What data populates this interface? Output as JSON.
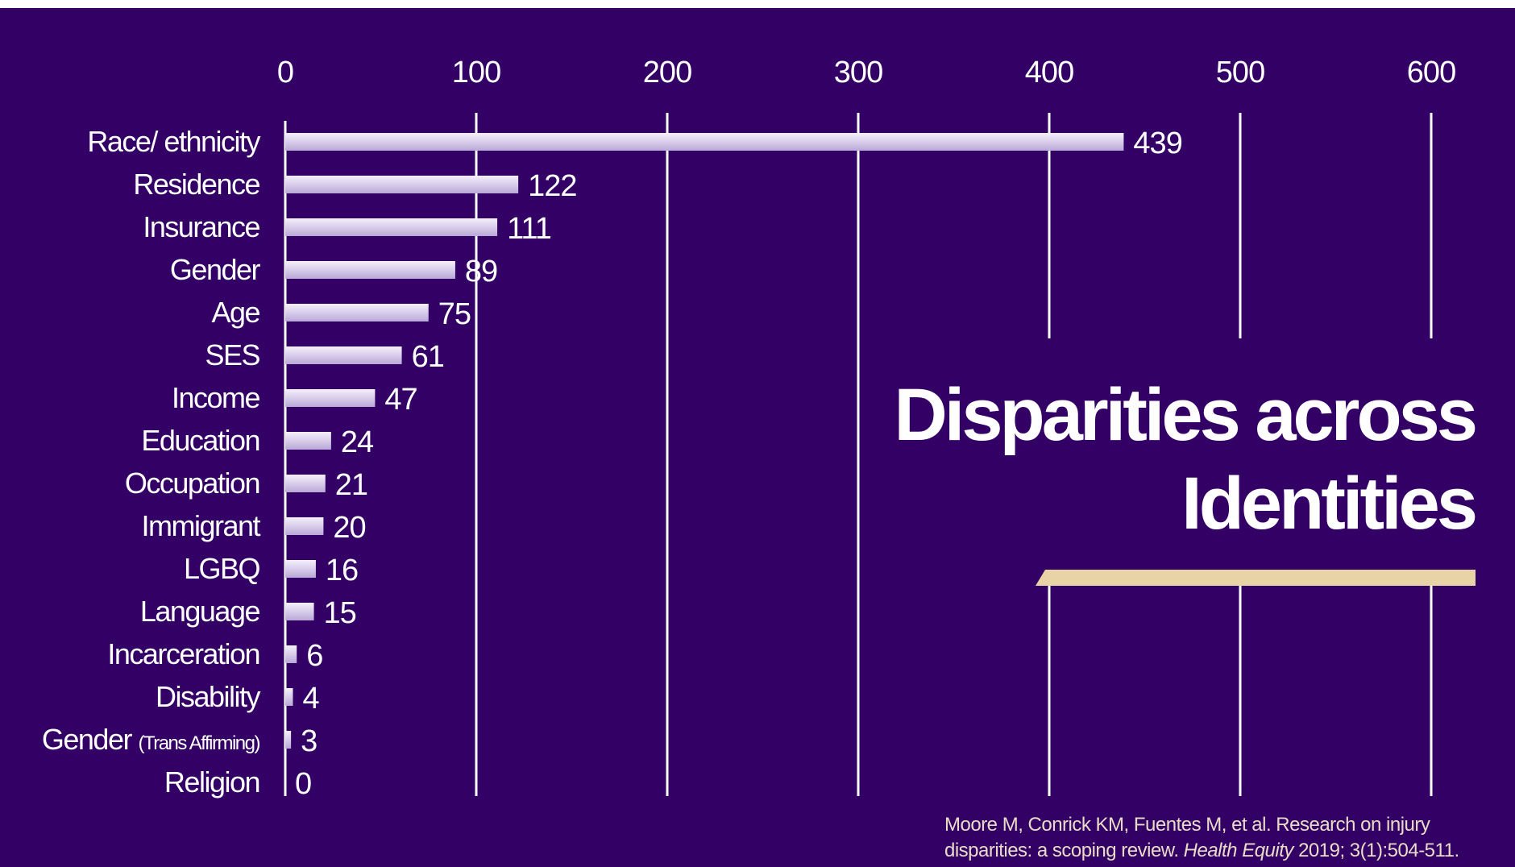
{
  "chart_data": {
    "type": "bar",
    "orientation": "horizontal",
    "title": "Disparities across Identities",
    "categories": [
      "Race/ ethnicity",
      "Residence",
      "Insurance",
      "Gender",
      "Age",
      "SES",
      "Income",
      "Education",
      "Occupation",
      "Immigrant",
      "LGBQ",
      "Language",
      "Incarceration",
      "Disability",
      "Gender (Trans Affirming)",
      "Religion"
    ],
    "values": [
      439,
      122,
      111,
      89,
      75,
      61,
      47,
      24,
      21,
      20,
      16,
      15,
      6,
      4,
      3,
      0
    ],
    "xlim": [
      0,
      600
    ],
    "xticks": [
      "0",
      "100",
      "200",
      "300",
      "400",
      "500",
      "600"
    ],
    "x_axis_position": "top",
    "grid": true,
    "data_labels": true
  },
  "citation": {
    "line1": "Moore M, Conrick KM, Fuentes M, et al. Research on injury",
    "line2_pre": "disparities: a scoping review. ",
    "journal": "Health Equity",
    "line2_post": " 2019; 3(1):504-511."
  },
  "colors": {
    "background": "#330066",
    "bar": "#d8cdeb",
    "text": "#ffffff",
    "accent_rule": "#e8d3a6",
    "citation": "#e9dcc6"
  }
}
